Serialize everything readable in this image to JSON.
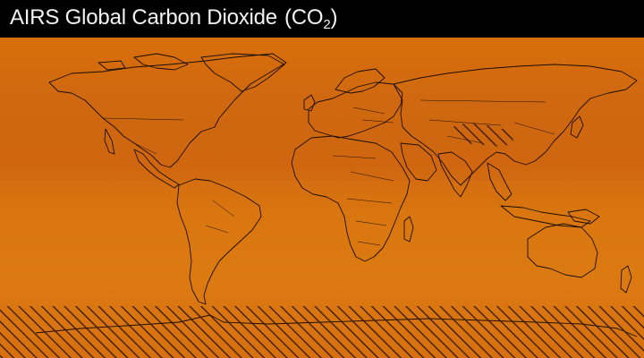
{
  "header": {
    "title_main": "AIRS Global Carbon Dioxide",
    "title_paren_open": "(CO",
    "title_subscript": "2",
    "title_paren_close": ")"
  },
  "map": {
    "projection": "equirectangular",
    "colors": {
      "base": "#d6700c",
      "band_high": "#cd6610",
      "band_low": "#dc7a12",
      "coastline": "#1a0d04",
      "no_data_hatch": "#3a1a06"
    },
    "no_data_regions": [
      "antarctica",
      "tibetan-plateau"
    ]
  }
}
